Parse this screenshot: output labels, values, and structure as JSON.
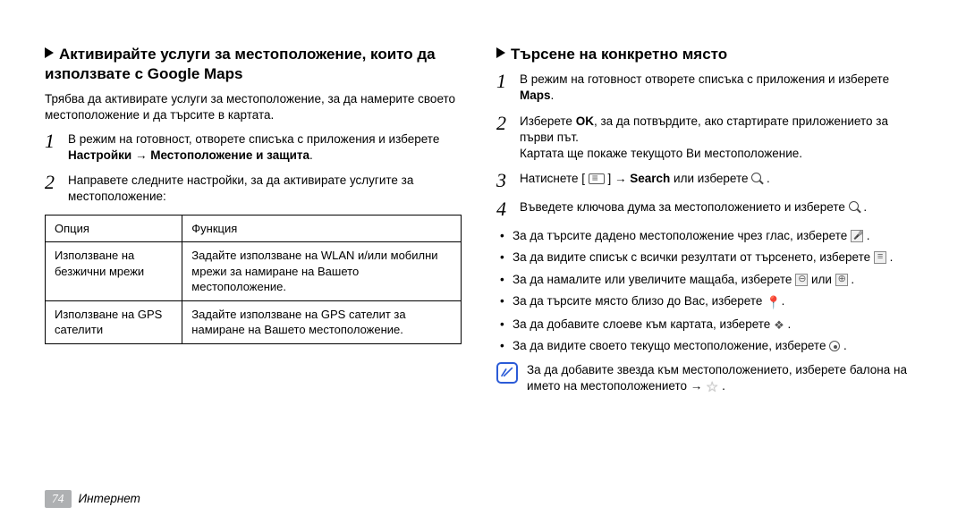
{
  "left": {
    "title": "Активирайте услуги за местоположение, които да използвате с Google Maps",
    "intro": "Трябва да активирате услуги за местоположение, за да намерите своето местоположение и да търсите в картата.",
    "steps": [
      {
        "num": "1",
        "text_before": "В режим на готовност, отворете списъка с приложения и изберете ",
        "bold": "Настройки → Местоположение и защита",
        "text_after": "."
      },
      {
        "num": "2",
        "text_before": "Направете следните настройки, за да активирате услугите за местоположение:",
        "bold": "",
        "text_after": ""
      }
    ],
    "table": {
      "header": [
        "Опция",
        "Функция"
      ],
      "rows": [
        [
          "Използване на безжични мрежи",
          "Задайте използване на WLAN и/или мобилни мрежи за намиране на Вашето местоположение."
        ],
        [
          "Използване на GPS сателити",
          "Задайте използване на GPS сателит за намиране на Вашето местоположение."
        ]
      ]
    }
  },
  "right": {
    "title": "Търсене на конкретно място",
    "steps": [
      {
        "num": "1",
        "body": "В режим на готовност отворете списъка с приложения и изберете <strong>Maps</strong>."
      },
      {
        "num": "2",
        "body": "Изберете <strong>OK</strong>, за да потвърдите, ако стартирате приложението за първи път.<br>Картата ще покаже текущото Ви местоположение."
      },
      {
        "num": "3",
        "body": "Натиснете [ <span class='icon icon-rect'></span> ] → <strong>Search</strong> или изберете <span class='icon icon-mag'></span> ."
      },
      {
        "num": "4",
        "body": "Въведете ключова дума за местоположението и изберете <span class='icon icon-mag'></span> ."
      }
    ],
    "bullets": [
      "За да търсите дадено местоположение чрез глас, изберете <span class='icon icon-sq icon-mic'></span> .",
      "За да видите списък с всички резултати от търсенето, изберете <span class='icon icon-sq icon-list'></span> .",
      "За да намалите или увеличите мащаба, изберете <span class='icon icon-sq icon-zoomout'></span> или <span class='icon icon-sq icon-zoomin'></span> .",
      "За да търсите място близо до Вас, изберете <span class='icon-pin-raw'>📍</span>.",
      "За да добавите слоеве към картата, изберете <span class='icon-layers'>❖</span> .",
      "За да видите своето текущо местоположение, изберете <span class='icon-target'></span> ."
    ],
    "note": "За да добавите звезда към местоположението, изберете балона на името на местоположението → <span class='star'>☆</span> ."
  },
  "footer": {
    "page": "74",
    "section": "Интернет"
  }
}
